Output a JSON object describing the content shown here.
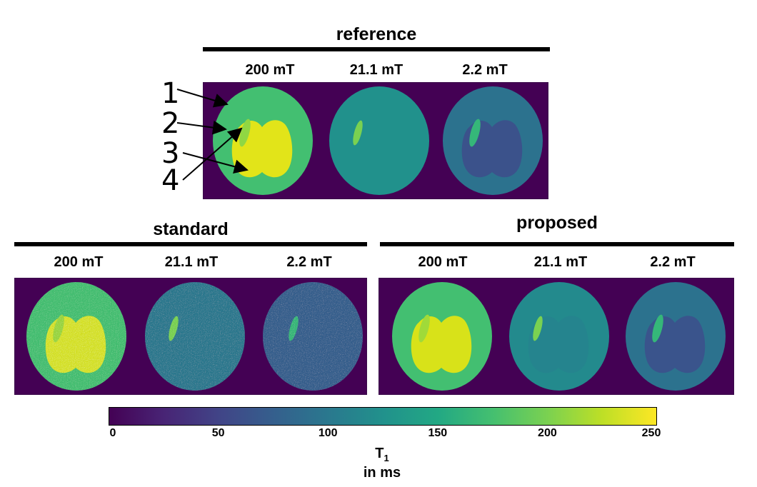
{
  "groups": {
    "reference": {
      "title": "reference",
      "fields": [
        "200 mT",
        "21.1 mT",
        "2.2 mT"
      ]
    },
    "standard": {
      "title": "standard",
      "fields": [
        "200 mT",
        "21.1 mT",
        "2.2 mT"
      ]
    },
    "proposed": {
      "title": "proposed",
      "fields": [
        "200 mT",
        "21.1 mT",
        "2.2 mT"
      ]
    }
  },
  "annotations": [
    "1",
    "2",
    "3",
    "4"
  ],
  "colorbar": {
    "ticks": [
      "0",
      "50",
      "100",
      "150",
      "200",
      "250"
    ],
    "range": [
      0,
      250
    ],
    "label_main": "T",
    "label_sub": "1",
    "label_units": "in ms",
    "colormap": "viridis"
  },
  "colors": {
    "background": "#440154",
    "outer_200": "#43bf71",
    "inner_200": "#e2e419",
    "lesion_200": "#90d743",
    "outer_21": "#21918c",
    "lesion_21": "#7ad151",
    "outer_2": "#2c728e",
    "inner_2": "#3b528b",
    "lesion_2": "#35b779"
  }
}
